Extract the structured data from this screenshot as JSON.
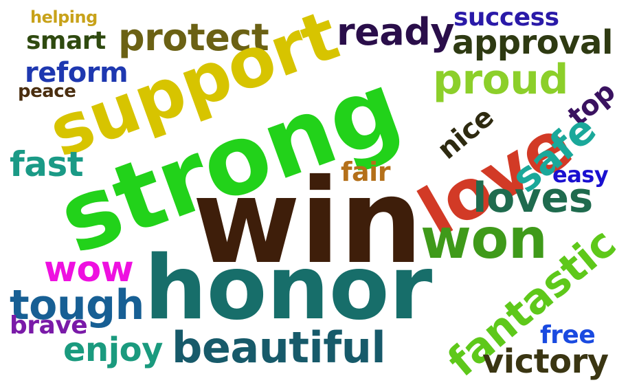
{
  "words": {
    "helping": {
      "text": "helping",
      "color": "#c8a21a"
    },
    "smart": {
      "text": "smart",
      "color": "#2f4a10"
    },
    "protect": {
      "text": "protect",
      "color": "#6b6114"
    },
    "ready": {
      "text": "ready",
      "color": "#2a0e4a"
    },
    "success": {
      "text": "success",
      "color": "#2a1aa8"
    },
    "approval": {
      "text": "approval",
      "color": "#2e3a12"
    },
    "reform": {
      "text": "reform",
      "color": "#1e38b0"
    },
    "peace": {
      "text": "peace",
      "color": "#4a2e10"
    },
    "support": {
      "text": "support",
      "color": "#d7c400"
    },
    "proud": {
      "text": "proud",
      "color": "#8ccf2a"
    },
    "strong": {
      "text": "strong",
      "color": "#22d21a"
    },
    "top": {
      "text": "top",
      "color": "#3a1260"
    },
    "nice": {
      "text": "nice",
      "color": "#2e2a10"
    },
    "love": {
      "text": "love",
      "color": "#d23a26"
    },
    "safe": {
      "text": "safe",
      "color": "#1aa89a"
    },
    "fast": {
      "text": "fast",
      "color": "#1a9a86"
    },
    "fair": {
      "text": "fair",
      "color": "#b4701a"
    },
    "easy": {
      "text": "easy",
      "color": "#1a10d0"
    },
    "loves": {
      "text": "loves",
      "color": "#1f6b4e"
    },
    "win": {
      "text": "win",
      "color": "#3e1e0a"
    },
    "won": {
      "text": "won",
      "color": "#3f9a1a"
    },
    "wow": {
      "text": "wow",
      "color": "#ee10e0"
    },
    "honor": {
      "text": "honor",
      "color": "#176e6a"
    },
    "tough": {
      "text": "tough",
      "color": "#175f94"
    },
    "brave": {
      "text": "brave",
      "color": "#7a1aa8"
    },
    "enjoy": {
      "text": "enjoy",
      "color": "#1a9a7e"
    },
    "beautiful": {
      "text": "beautiful",
      "color": "#175a6a"
    },
    "fantastic": {
      "text": "fantastic",
      "color": "#5ec81a"
    },
    "free": {
      "text": "free",
      "color": "#1a4ae0"
    },
    "victory": {
      "text": "victory",
      "color": "#3a3512"
    }
  }
}
